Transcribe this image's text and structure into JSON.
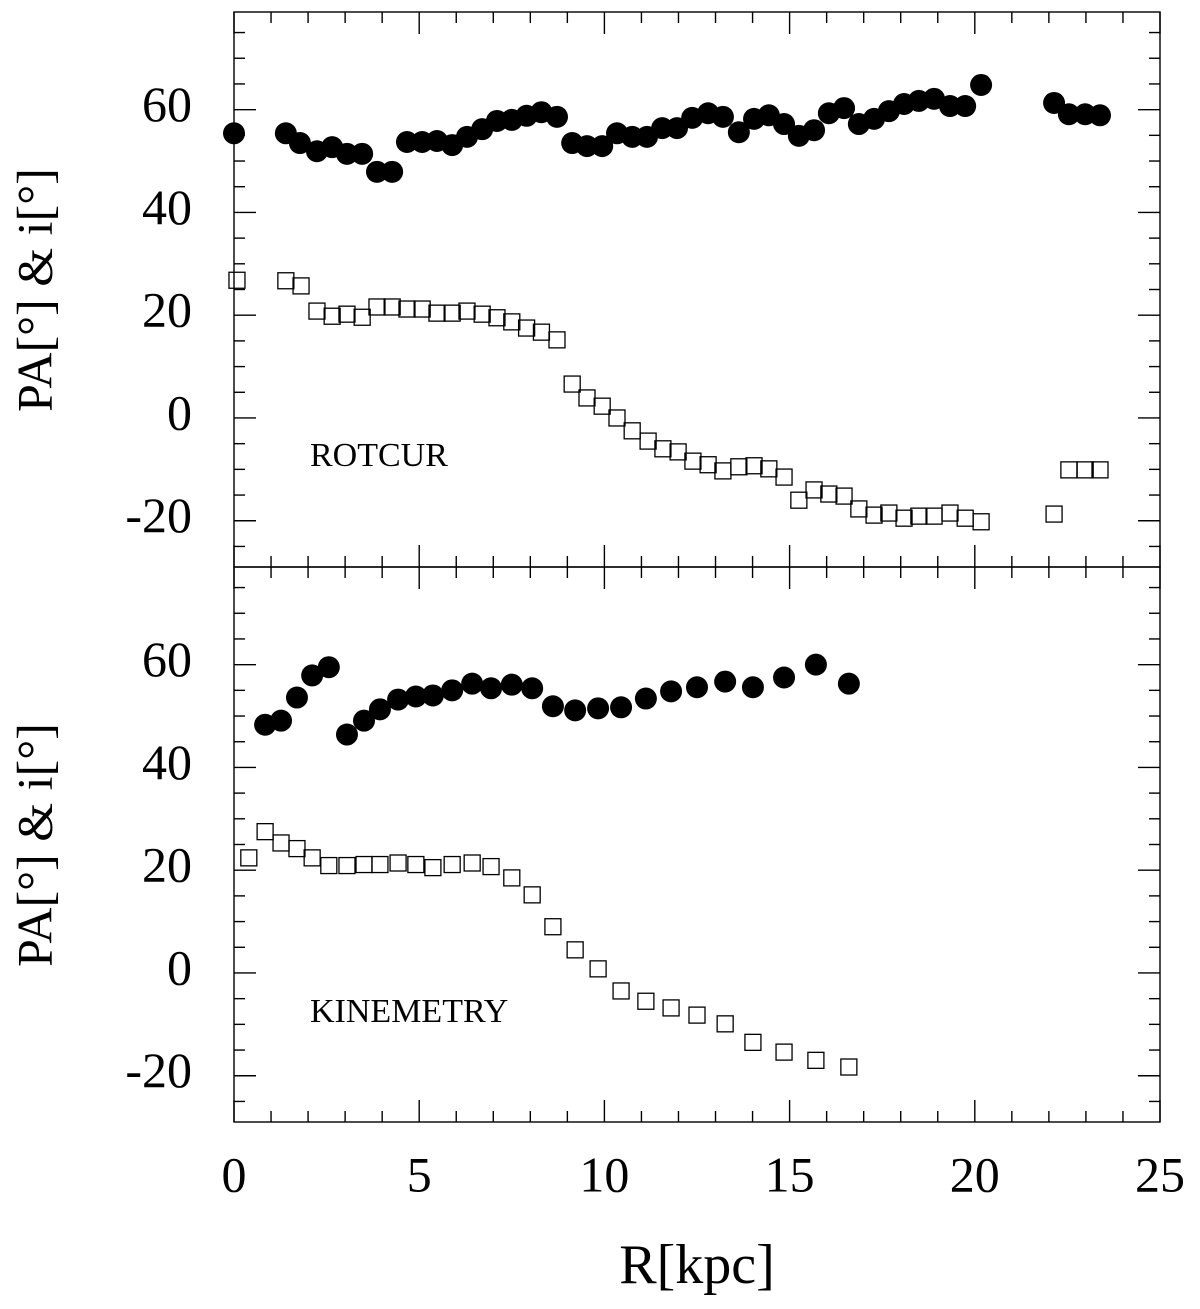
{
  "chart_data": [
    {
      "type": "scatter",
      "annotation": "ROTCUR",
      "ylabel": "PA[°] & i[°]",
      "xlim": [
        0,
        25
      ],
      "xticks": [
        0,
        5,
        10,
        15,
        20,
        25
      ],
      "show_xtick_labels": false,
      "xminor": 5,
      "ylim": [
        -29,
        79
      ],
      "yticks": [
        -20,
        0,
        20,
        40,
        60
      ],
      "yminor": 4,
      "series": [
        {
          "marker": "filled-circle",
          "color": "#000000",
          "x": [
            0,
            1.4,
            1.78,
            2.24,
            2.65,
            3.05,
            3.46,
            3.86,
            4.27,
            4.67,
            5.08,
            5.48,
            5.89,
            6.29,
            6.7,
            7.1,
            7.5,
            7.9,
            8.3,
            8.72,
            9.13,
            9.53,
            9.94,
            10.34,
            10.75,
            11.15,
            11.56,
            11.96,
            12.37,
            12.8,
            13.2,
            13.63,
            14.04,
            14.44,
            14.85,
            15.25,
            15.66,
            16.06,
            16.47,
            16.87,
            17.28,
            17.68,
            18.09,
            18.49,
            18.9,
            19.33,
            19.74,
            20.17,
            22.14,
            22.54,
            22.98,
            23.38
          ],
          "values": [
            55.4,
            55.4,
            53.5,
            51.9,
            52.7,
            51.4,
            51.4,
            47.9,
            47.9,
            53.7,
            53.7,
            53.9,
            53.1,
            54.7,
            56.2,
            57.8,
            58.0,
            58.8,
            59.5,
            58.6,
            53.5,
            52.9,
            52.9,
            55.4,
            54.7,
            54.7,
            56.4,
            56.4,
            58.4,
            59.3,
            58.6,
            55.6,
            58.2,
            58.9,
            57.2,
            54.9,
            56.0,
            59.3,
            60.3,
            57.2,
            58.2,
            59.7,
            61.1,
            61.7,
            62.1,
            60.7,
            60.7,
            64.8,
            61.3,
            59.1,
            59.1,
            58.9
          ]
        },
        {
          "marker": "open-square",
          "color": "#000000",
          "x": [
            0.08,
            1.4,
            1.81,
            2.24,
            2.65,
            3.05,
            3.46,
            3.86,
            4.27,
            4.67,
            5.08,
            5.48,
            5.89,
            6.29,
            6.7,
            7.1,
            7.5,
            7.9,
            8.3,
            8.72,
            9.13,
            9.53,
            9.94,
            10.34,
            10.75,
            11.18,
            11.58,
            11.99,
            12.39,
            12.8,
            13.2,
            13.63,
            14.04,
            14.44,
            14.85,
            15.25,
            15.66,
            16.06,
            16.47,
            16.87,
            17.28,
            17.68,
            18.09,
            18.49,
            18.9,
            19.33,
            19.74,
            20.17,
            22.14,
            22.54,
            22.98,
            23.38
          ],
          "values": [
            26.8,
            26.7,
            25.7,
            20.8,
            19.8,
            20.2,
            19.6,
            21.6,
            21.6,
            21.2,
            21.2,
            20.4,
            20.4,
            20.8,
            20.2,
            19.5,
            18.7,
            17.5,
            16.7,
            15.2,
            6.6,
            3.9,
            2.3,
            0,
            -2.5,
            -4.5,
            -6.0,
            -6.6,
            -8.4,
            -9.1,
            -10.3,
            -9.5,
            -9.3,
            -9.9,
            -11.5,
            -16.0,
            -14.0,
            -14.8,
            -15.2,
            -17.7,
            -18.9,
            -18.5,
            -19.5,
            -19.1,
            -19.1,
            -18.5,
            -19.5,
            -20.2,
            -18.7,
            -10.1,
            -10.1,
            -10.1
          ]
        }
      ]
    },
    {
      "type": "scatter",
      "annotation": "KINEMETRY",
      "ylabel": "PA[°] & i[°]",
      "xlabel": "R[kpc]",
      "xlim": [
        0,
        25
      ],
      "xticks": [
        0,
        5,
        10,
        15,
        20,
        25
      ],
      "show_xtick_labels": true,
      "xminor": 5,
      "ylim": [
        -29,
        79
      ],
      "yticks": [
        -20,
        0,
        20,
        40,
        60
      ],
      "yminor": 4,
      "series": [
        {
          "marker": "filled-circle",
          "color": "#000000",
          "x": [
            0.84,
            1.27,
            1.7,
            2.11,
            2.56,
            3.05,
            3.51,
            3.94,
            4.43,
            4.91,
            5.37,
            5.89,
            6.43,
            6.94,
            7.5,
            8.05,
            8.61,
            9.21,
            9.83,
            10.45,
            11.12,
            11.8,
            12.5,
            13.26,
            14.01,
            14.85,
            15.71,
            16.6
          ],
          "values": [
            48.3,
            49.1,
            53.6,
            57.9,
            59.5,
            46.4,
            49.1,
            51.3,
            53.2,
            53.8,
            54.0,
            55.0,
            56.3,
            55.4,
            56.1,
            55.4,
            51.9,
            51.1,
            51.5,
            51.7,
            53.4,
            54.8,
            55.6,
            56.7,
            55.6,
            57.5,
            60.0,
            56.3
          ]
        },
        {
          "marker": "open-square",
          "color": "#000000",
          "x": [
            0.4,
            0.84,
            1.27,
            1.7,
            2.11,
            2.56,
            3.05,
            3.51,
            3.94,
            4.43,
            4.91,
            5.37,
            5.89,
            6.43,
            6.94,
            7.5,
            8.05,
            8.61,
            9.21,
            9.83,
            10.45,
            11.12,
            11.8,
            12.5,
            13.26,
            14.01,
            14.85,
            15.71,
            16.6
          ],
          "values": [
            22.4,
            27.5,
            25.3,
            24.2,
            22.4,
            20.9,
            20.9,
            21.1,
            21.1,
            21.4,
            21.1,
            20.5,
            21.1,
            21.4,
            20.7,
            18.5,
            15.2,
            9.0,
            4.5,
            0.8,
            -3.5,
            -5.5,
            -6.8,
            -8.2,
            -9.9,
            -13.5,
            -15.4,
            -17.0,
            -18.3
          ]
        }
      ]
    }
  ]
}
